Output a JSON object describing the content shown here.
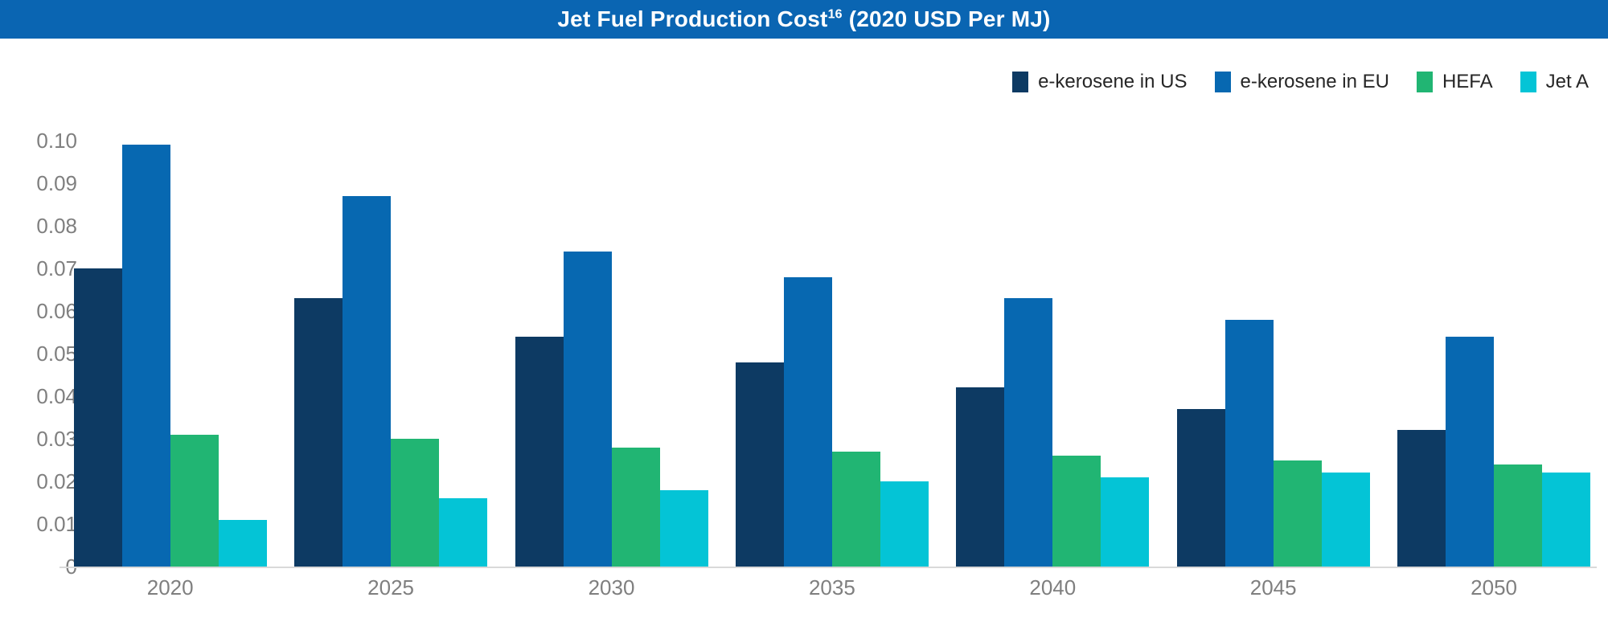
{
  "header": {
    "title_main": "Jet Fuel Production Cost",
    "title_superscript": "16",
    "title_suffix": " (2020 USD Per MJ)",
    "background_color": "#0a65b2",
    "text_color": "#ffffff"
  },
  "legend": {
    "position": "top-right",
    "items": [
      {
        "label": "e-kerosene in US",
        "color": "#0d3a63"
      },
      {
        "label": "e-kerosene in EU",
        "color": "#0768b1"
      },
      {
        "label": "HEFA",
        "color": "#21b573"
      },
      {
        "label": "Jet A",
        "color": "#04c4d6"
      }
    ]
  },
  "chart_data": {
    "type": "bar",
    "title": "Jet Fuel Production Cost (2020 USD Per MJ)",
    "xlabel": "",
    "ylabel": "",
    "categories": [
      "2020",
      "2025",
      "2030",
      "2035",
      "2040",
      "2045",
      "2050"
    ],
    "series": [
      {
        "name": "e-kerosene in US",
        "color": "#0d3a63",
        "values": [
          0.07,
          0.063,
          0.054,
          0.048,
          0.042,
          0.037,
          0.032
        ]
      },
      {
        "name": "e-kerosene in EU",
        "color": "#0768b1",
        "values": [
          0.099,
          0.087,
          0.074,
          0.068,
          0.063,
          0.058,
          0.054
        ]
      },
      {
        "name": "HEFA",
        "color": "#21b573",
        "values": [
          0.031,
          0.03,
          0.028,
          0.027,
          0.026,
          0.025,
          0.024
        ]
      },
      {
        "name": "Jet A",
        "color": "#04c4d6",
        "values": [
          0.011,
          0.016,
          0.018,
          0.02,
          0.021,
          0.022,
          0.022
        ]
      }
    ],
    "ylim": [
      0,
      0.1
    ],
    "ytick_step": 0.01,
    "ytick_labels": [
      "0",
      "0.01",
      "0.02",
      "0.03",
      "0.04",
      "0.05",
      "0.06",
      "0.07",
      "0.08",
      "0.09",
      "0.10"
    ],
    "grid": false,
    "legend_position": "top-right",
    "axis_label_color": "#7f7f7f",
    "axis_line_color": "#d9d9d9"
  }
}
